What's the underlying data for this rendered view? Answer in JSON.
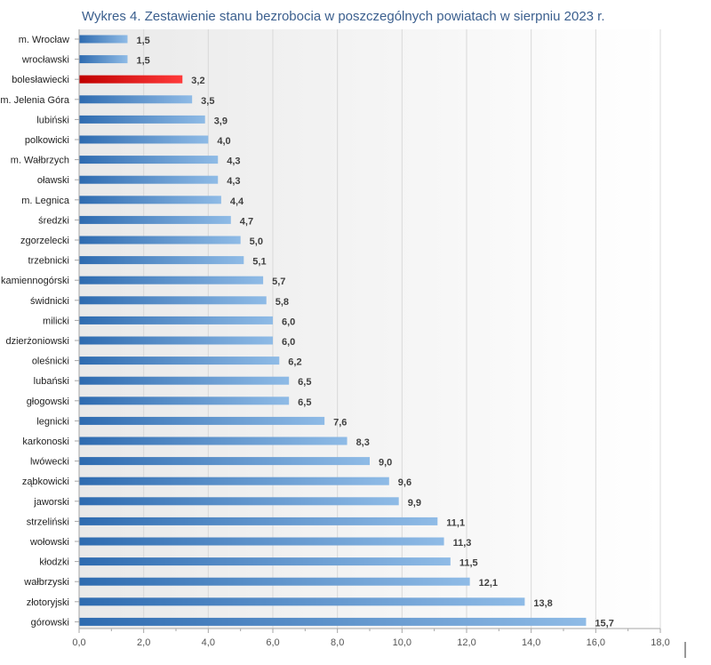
{
  "chart_data": {
    "type": "bar",
    "orientation": "horizontal",
    "title": "Wykres 4. Zestawienie stanu bezrobocia w poszczególnych powiatach w sierpniu 2023 r.",
    "xlabel": "",
    "ylabel": "",
    "categories": [
      "m. Wrocław",
      "wrocławski",
      "bolesławiecki",
      "m. Jelenia Góra",
      "lubiński",
      "polkowicki",
      "m. Wałbrzych",
      "oławski",
      "m. Legnica",
      "średzki",
      "zgorzelecki",
      "trzebnicki",
      "kamiennogórski",
      "świdnicki",
      "milicki",
      "dzierżoniowski",
      "oleśnicki",
      "lubański",
      "głogowski",
      "legnicki",
      "karkonoski",
      "lwówecki",
      "ząbkowicki",
      "jaworski",
      "strzeliński",
      "wołowski",
      "kłodzki",
      "wałbrzyski",
      "złotoryjski",
      "górowski"
    ],
    "values": [
      1.5,
      1.5,
      3.2,
      3.5,
      3.9,
      4.0,
      4.3,
      4.3,
      4.4,
      4.7,
      5.0,
      5.1,
      5.7,
      5.8,
      6.0,
      6.0,
      6.2,
      6.5,
      6.5,
      7.6,
      8.3,
      9.0,
      9.6,
      9.9,
      11.1,
      11.3,
      11.5,
      12.1,
      13.8,
      15.7
    ],
    "value_labels": [
      "1,5",
      "1,5",
      "3,2",
      "3,5",
      "3,9",
      "4,0",
      "4,3",
      "4,3",
      "4,4",
      "4,7",
      "5,0",
      "5,1",
      "5,7",
      "5,8",
      "6,0",
      "6,0",
      "6,2",
      "6,5",
      "6,5",
      "7,6",
      "8,3",
      "9,0",
      "9,6",
      "9,9",
      "11,1",
      "11,3",
      "11,5",
      "12,1",
      "13,8",
      "15,7"
    ],
    "highlight_category": "bolesławiecki",
    "xlim": [
      0,
      18
    ],
    "x_ticks": [
      0,
      2,
      4,
      6,
      8,
      10,
      12,
      14,
      16,
      18
    ],
    "x_tick_labels": [
      "0,0",
      "2,0",
      "4,0",
      "6,0",
      "8,0",
      "10,0",
      "12,0",
      "14,0",
      "16,0",
      "18,0"
    ],
    "grid": true,
    "legend": "none",
    "colors": {
      "bar_dark": "#2e6bb0",
      "bar_light": "#8fbbe6",
      "highlight_dark": "#c00000",
      "highlight_light": "#ff3a3a",
      "grid": "#d9d9d9",
      "title": "#3b5f8e"
    }
  }
}
